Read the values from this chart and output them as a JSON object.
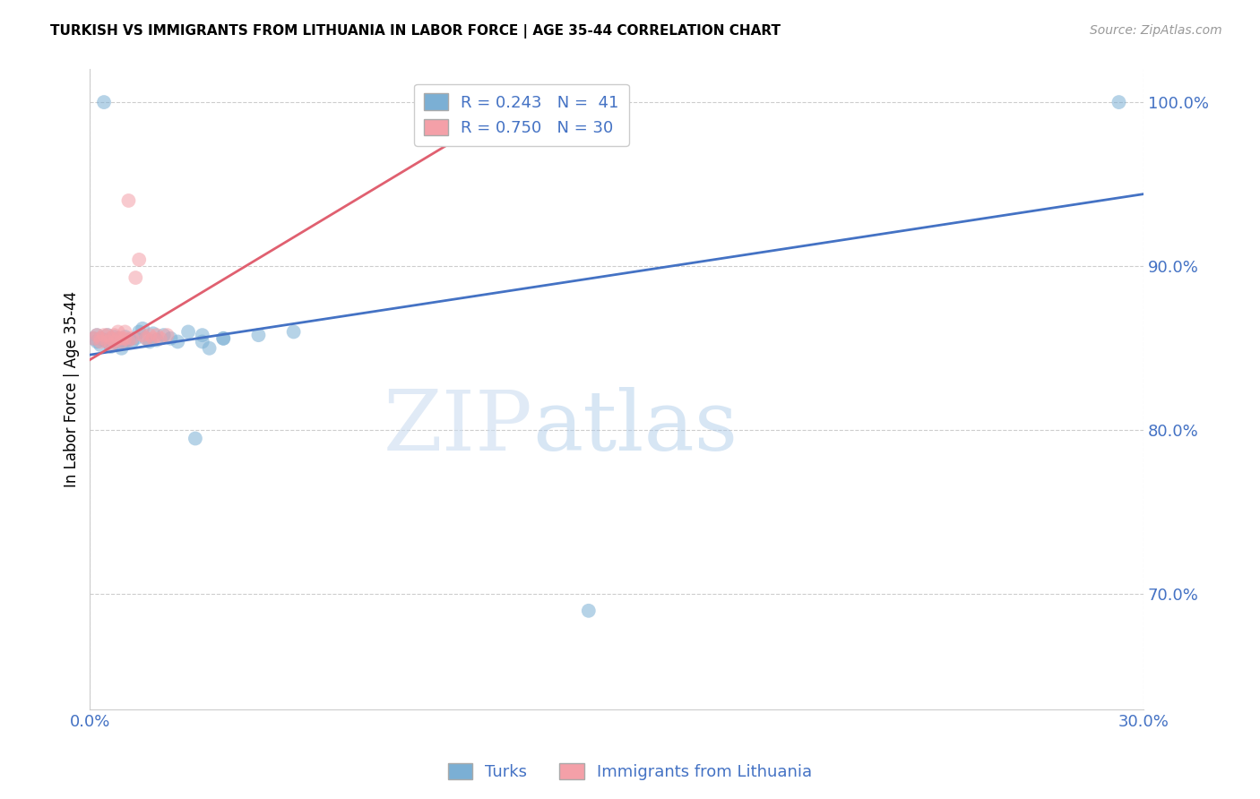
{
  "title": "TURKISH VS IMMIGRANTS FROM LITHUANIA IN LABOR FORCE | AGE 35-44 CORRELATION CHART",
  "source": "Source: ZipAtlas.com",
  "ylabel": "In Labor Force | Age 35-44",
  "watermark_zip": "ZIP",
  "watermark_atlas": "atlas",
  "legend_entries": [
    {
      "label": "R = 0.243   N =  41",
      "color": "#7bafd4"
    },
    {
      "label": "R = 0.750   N = 30",
      "color": "#f4a0a8"
    }
  ],
  "legend_bottom": [
    "Turks",
    "Immigrants from Lithuania"
  ],
  "xmin": 0.0,
  "xmax": 0.3,
  "ymin": 0.63,
  "ymax": 1.02,
  "yticks": [
    0.7,
    0.8,
    0.9,
    1.0
  ],
  "xticks": [
    0.0,
    0.3
  ],
  "turks_color": "#7bafd4",
  "lithuania_color": "#f4a0a8",
  "trend_turks_color": "#4472c4",
  "trend_lithuania_color": "#e06070",
  "background_color": "#ffffff",
  "grid_color": "#c8c8c8",
  "axis_color": "#4472c4",
  "turks_x": [
    0.001,
    0.002,
    0.002,
    0.003,
    0.003,
    0.004,
    0.004,
    0.005,
    0.005,
    0.006,
    0.006,
    0.007,
    0.007,
    0.008,
    0.008,
    0.009,
    0.01,
    0.01,
    0.011,
    0.012,
    0.013,
    0.014,
    0.015,
    0.016,
    0.017,
    0.018,
    0.019,
    0.021,
    0.023,
    0.025,
    0.028,
    0.032,
    0.038,
    0.048,
    0.058,
    0.032,
    0.038,
    0.034,
    0.03,
    0.293,
    0.142
  ],
  "turks_y": [
    0.856,
    0.858,
    0.854,
    0.852,
    0.856,
    1.0,
    0.855,
    0.854,
    0.858,
    0.851,
    0.856,
    0.854,
    0.857,
    0.853,
    0.856,
    0.85,
    0.854,
    0.857,
    0.855,
    0.854,
    0.856,
    0.86,
    0.862,
    0.856,
    0.854,
    0.859,
    0.855,
    0.858,
    0.856,
    0.854,
    0.86,
    0.858,
    0.856,
    0.858,
    0.86,
    0.854,
    0.856,
    0.85,
    0.795,
    1.0,
    0.69
  ],
  "lithuania_x": [
    0.001,
    0.002,
    0.003,
    0.003,
    0.004,
    0.005,
    0.005,
    0.006,
    0.006,
    0.007,
    0.007,
    0.008,
    0.008,
    0.009,
    0.009,
    0.01,
    0.01,
    0.011,
    0.011,
    0.012,
    0.013,
    0.014,
    0.015,
    0.016,
    0.017,
    0.018,
    0.019,
    0.02,
    0.022,
    0.122
  ],
  "lithuania_y": [
    0.856,
    0.858,
    0.854,
    0.856,
    0.858,
    0.854,
    0.858,
    0.852,
    0.856,
    0.854,
    0.858,
    0.856,
    0.86,
    0.856,
    0.854,
    0.856,
    0.86,
    0.855,
    0.94,
    0.856,
    0.893,
    0.904,
    0.858,
    0.856,
    0.858,
    0.856,
    0.858,
    0.856,
    0.858,
    1.0
  ],
  "turks_trend_x": [
    0.0,
    0.3
  ],
  "turks_trend_y": [
    0.846,
    0.944
  ],
  "lith_trend_x": [
    0.0,
    0.122
  ],
  "lith_trend_y": [
    0.843,
    1.0
  ]
}
